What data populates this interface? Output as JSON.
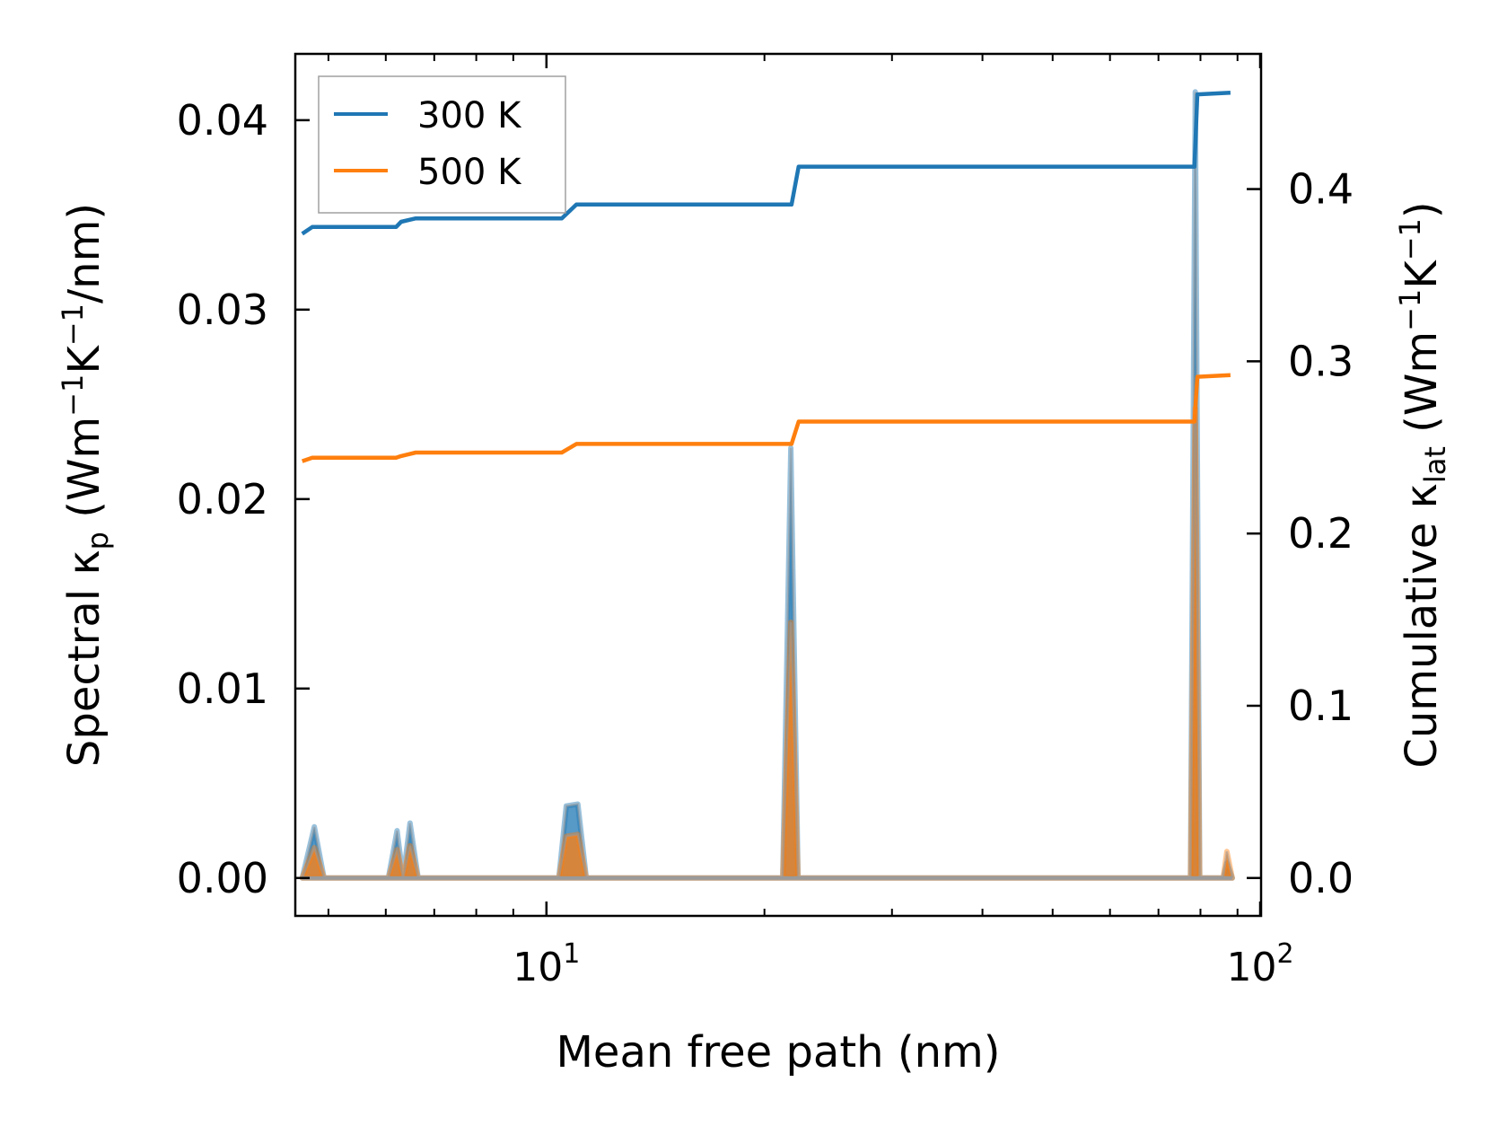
{
  "chart_data": {
    "type": "line",
    "xscale": "log",
    "xlim": [
      4.5,
      97
    ],
    "xlabel": "Mean free path (nm)",
    "x_major_ticks": [
      {
        "value": 10,
        "base": "10",
        "exp": "1"
      },
      {
        "value": 100,
        "base": "10",
        "exp": "2"
      }
    ],
    "left_axis": {
      "ylabel_prefix": "Spectral κ",
      "ylabel_sub": "p",
      "ylabel_unit_open": " (Wm",
      "ylabel_unit_exp1": "−1",
      "ylabel_unit_mid": "K",
      "ylabel_unit_exp2": "−1",
      "ylabel_unit_close": "/nm)",
      "ylim": [
        -0.002,
        0.0435
      ],
      "ticks": [
        0.0,
        0.01,
        0.02,
        0.03,
        0.04
      ],
      "tick_labels": [
        "0.00",
        "0.01",
        "0.02",
        "0.03",
        "0.04"
      ]
    },
    "right_axis": {
      "ylabel_prefix": "Cumulative κ",
      "ylabel_sub": "lat",
      "ylabel_unit_open": " (Wm",
      "ylabel_unit_exp1": "−1",
      "ylabel_unit_mid": "K",
      "ylabel_unit_exp2": "−1",
      "ylabel_unit_close": ")",
      "ylim": [
        -0.022,
        0.4785
      ],
      "ticks": [
        0.0,
        0.1,
        0.2,
        0.3,
        0.4
      ],
      "tick_labels": [
        "0.0",
        "0.1",
        "0.2",
        "0.3",
        "0.4"
      ]
    },
    "legend": {
      "placement": "top-left",
      "entries": [
        {
          "label": "300 K",
          "color": "#1f77b4"
        },
        {
          "label": "500 K",
          "color": "#ff7f0e"
        }
      ]
    },
    "series": [
      {
        "name": "300 K",
        "axis": "right",
        "kind": "cumulative",
        "color": "#1f77b4",
        "x": [
          4.6,
          4.75,
          6.2,
          6.3,
          6.6,
          10.5,
          11.0,
          21.8,
          22.3,
          78.5,
          79.2,
          88
        ],
        "y": [
          0.374,
          0.378,
          0.378,
          0.381,
          0.383,
          0.383,
          0.391,
          0.391,
          0.413,
          0.413,
          0.455,
          0.456
        ]
      },
      {
        "name": "500 K",
        "axis": "right",
        "kind": "cumulative",
        "color": "#ff7f0e",
        "x": [
          4.6,
          4.75,
          6.2,
          6.3,
          6.6,
          10.5,
          11.0,
          21.8,
          22.3,
          78.5,
          79.2,
          88
        ],
        "y": [
          0.242,
          0.244,
          0.244,
          0.245,
          0.247,
          0.247,
          0.252,
          0.252,
          0.265,
          0.265,
          0.291,
          0.292
        ]
      },
      {
        "name": "300 K",
        "axis": "left",
        "kind": "spectral",
        "color": "#1f77b4",
        "x": [
          4.6,
          4.78,
          4.93,
          6.05,
          6.22,
          6.34,
          6.48,
          6.65,
          10.4,
          10.65,
          11.05,
          11.35,
          21.2,
          21.75,
          22.25,
          77.5,
          78.7,
          79.8,
          86,
          87,
          88.5
        ],
        "y": [
          0,
          0.0027,
          0,
          0,
          0.0025,
          0,
          0.0029,
          0,
          0,
          0.0038,
          0.0039,
          0,
          0,
          0.0227,
          0,
          0,
          0.0415,
          0,
          0,
          0.0008,
          0
        ]
      },
      {
        "name": "500 K",
        "axis": "left",
        "kind": "spectral",
        "color": "#ff7f0e",
        "x": [
          4.6,
          4.78,
          4.93,
          6.05,
          6.22,
          6.34,
          6.48,
          6.65,
          10.4,
          10.65,
          11.05,
          11.35,
          21.2,
          21.75,
          22.25,
          77.5,
          78.7,
          79.8,
          86,
          87,
          88.5
        ],
        "y": [
          0,
          0.0016,
          0,
          0,
          0.0015,
          0,
          0.0017,
          0,
          0,
          0.0022,
          0.0023,
          0,
          0,
          0.0135,
          0,
          0,
          0.0248,
          0,
          0,
          0.0014,
          0
        ]
      }
    ]
  }
}
